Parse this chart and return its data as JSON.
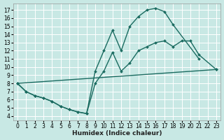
{
  "background_color": "#c8e8e4",
  "grid_color": "#ffffff",
  "line_color": "#1a6b60",
  "marker": "D",
  "marker_size": 2.0,
  "line_width": 1.0,
  "xlabel": "Humidex (Indice chaleur)",
  "xlabel_fontsize": 6.5,
  "tick_fontsize": 5.5,
  "xlim": [
    -0.5,
    23.5
  ],
  "ylim": [
    3.5,
    17.8
  ],
  "xticks": [
    0,
    1,
    2,
    3,
    4,
    5,
    6,
    7,
    8,
    9,
    10,
    11,
    12,
    13,
    14,
    15,
    16,
    17,
    18,
    19,
    20,
    21,
    22,
    23
  ],
  "yticks": [
    4,
    5,
    6,
    7,
    8,
    9,
    10,
    11,
    12,
    13,
    14,
    15,
    16,
    17
  ],
  "line1": {
    "x": [
      0,
      1,
      2,
      3,
      4,
      5,
      6,
      7,
      8,
      9,
      10,
      11,
      12,
      13,
      14,
      15,
      16,
      17,
      18,
      21
    ],
    "y": [
      8.0,
      7.0,
      6.5,
      6.2,
      5.8,
      5.2,
      4.8,
      4.5,
      4.3,
      9.5,
      12.0,
      14.5,
      12.0,
      15.0,
      16.2,
      17.0,
      17.2,
      16.8,
      15.2,
      11.0
    ]
  },
  "line2": {
    "x": [
      0,
      1,
      2,
      3,
      4,
      5,
      6,
      7,
      8,
      9,
      10,
      11,
      12,
      13,
      14,
      15,
      16,
      17,
      18,
      19,
      20,
      21,
      23
    ],
    "y": [
      8.0,
      7.0,
      6.5,
      6.2,
      5.8,
      5.2,
      4.8,
      4.5,
      4.3,
      8.0,
      9.5,
      11.8,
      9.5,
      10.5,
      12.0,
      12.5,
      13.0,
      13.2,
      12.5,
      13.2,
      13.2,
      11.5,
      9.7
    ]
  },
  "line3": {
    "x": [
      0,
      23
    ],
    "y": [
      8.0,
      9.7
    ]
  }
}
